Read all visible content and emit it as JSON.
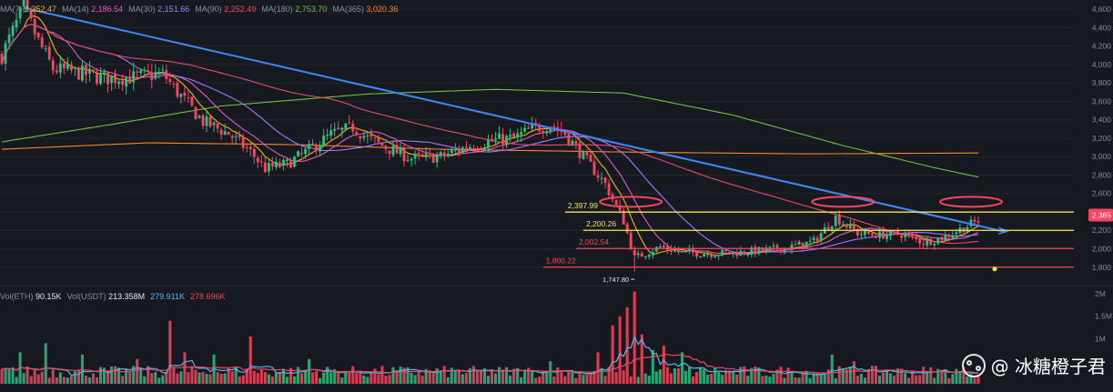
{
  "legend": {
    "price": [
      {
        "label": "MA(7)",
        "value": "2,352.47",
        "color": "#f0b90b"
      },
      {
        "label": "MA(14)",
        "value": "2,186.54",
        "color": "#e05cc0"
      },
      {
        "label": "MA(30)",
        "value": "2,151.66",
        "color": "#9e7bff"
      },
      {
        "label": "MA(90)",
        "value": "2,252.49",
        "color": "#e84a6a"
      },
      {
        "label": "MA(180)",
        "value": "2,753.70",
        "color": "#6cc04a"
      },
      {
        "label": "MA(365)",
        "value": "3,020.36",
        "color": "#f5892a"
      }
    ],
    "volume": [
      {
        "label": "Vol(ETH)",
        "value": "90.15K",
        "color": "#e8e8e8"
      },
      {
        "label": "Vol(USDT)",
        "value": "213.358M",
        "color": "#e8e8e8"
      },
      {
        "label": "",
        "value": "279.911K",
        "color": "#5ab8e8"
      },
      {
        "label": "",
        "value": "278.696K",
        "color": "#e84a6a"
      }
    ]
  },
  "watermark": "@ 冰糖橙子君",
  "colors": {
    "up": "#2ebd85",
    "down": "#f6465d",
    "trend": "#3d8af7",
    "level_yellow": "#f7e45a",
    "level_red": "#f6465d",
    "circle": "#f6465d",
    "grid": "#23272e",
    "axis_text": "#848e9c"
  },
  "chart_data": {
    "type": "candlestick",
    "y_axis": {
      "range": [
        1620,
        4700
      ],
      "ticks": [
        1800,
        2000,
        2200,
        2400,
        2600,
        2800,
        3000,
        3200,
        3400,
        3600,
        3800,
        4000,
        4200,
        4400,
        4600
      ],
      "tick_labels": [
        "1,800",
        "2,000",
        "2,200",
        "2,400",
        "2,600",
        "2,800",
        "3,000",
        "3,200",
        "3,400",
        "3,600",
        "3,800",
        "4,000",
        "4,200",
        "4,400",
        "4,600"
      ],
      "current_price_label": "2,365",
      "current_price": 2365
    },
    "volume_axis": {
      "range": [
        0,
        2100000
      ],
      "ticks": [
        1000000,
        1500000,
        2000000
      ],
      "tick_labels": [
        "1M",
        "1.5M",
        "2M"
      ]
    },
    "key_points": [
      [
        0,
        4100
      ],
      [
        6,
        4620
      ],
      [
        10,
        4250
      ],
      [
        14,
        3950
      ],
      [
        20,
        3920
      ],
      [
        28,
        3850
      ],
      [
        36,
        3860
      ],
      [
        44,
        3900
      ],
      [
        48,
        3700
      ],
      [
        55,
        3380
      ],
      [
        62,
        3250
      ],
      [
        68,
        3050
      ],
      [
        72,
        2870
      ],
      [
        78,
        2920
      ],
      [
        85,
        3100
      ],
      [
        90,
        3240
      ],
      [
        96,
        3320
      ],
      [
        100,
        3200
      ],
      [
        105,
        3100
      ],
      [
        112,
        2980
      ],
      [
        120,
        3000
      ],
      [
        128,
        3120
      ],
      [
        135,
        3180
      ],
      [
        140,
        3200
      ],
      [
        145,
        3300
      ],
      [
        150,
        3350
      ],
      [
        154,
        3250
      ],
      [
        160,
        2950
      ],
      [
        165,
        2700
      ],
      [
        170,
        2300
      ],
      [
        173,
        1900
      ],
      [
        180,
        2020
      ],
      [
        186,
        1960
      ],
      [
        194,
        1950
      ],
      [
        202,
        1960
      ],
      [
        210,
        1990
      ],
      [
        216,
        2020
      ],
      [
        222,
        2080
      ],
      [
        228,
        2340
      ],
      [
        234,
        2170
      ],
      [
        240,
        2150
      ],
      [
        246,
        2160
      ],
      [
        252,
        2070
      ],
      [
        258,
        2130
      ],
      [
        264,
        2250
      ],
      [
        268,
        2320
      ]
    ],
    "ma_series": [
      {
        "name": "MA(7)",
        "period": 7
      },
      {
        "name": "MA(14)",
        "period": 14
      },
      {
        "name": "MA(30)",
        "period": 30
      },
      {
        "name": "MA(90)",
        "period": 90
      }
    ],
    "ma180_points": [
      [
        0,
        3160
      ],
      [
        30,
        3350
      ],
      [
        60,
        3550
      ],
      [
        100,
        3680
      ],
      [
        135,
        3730
      ],
      [
        170,
        3690
      ],
      [
        200,
        3450
      ],
      [
        230,
        3120
      ],
      [
        255,
        2880
      ],
      [
        268,
        2770
      ]
    ],
    "ma365_points": [
      [
        0,
        3080
      ],
      [
        40,
        3150
      ],
      [
        80,
        3130
      ],
      [
        120,
        3080
      ],
      [
        170,
        3050
      ],
      [
        220,
        3030
      ],
      [
        268,
        3040
      ]
    ],
    "volume": {
      "base": 250000,
      "spikes": [
        [
          5,
          700000
        ],
        [
          12,
          900000
        ],
        [
          22,
          650000
        ],
        [
          37,
          550000
        ],
        [
          46,
          1400000
        ],
        [
          50,
          700000
        ],
        [
          58,
          650000
        ],
        [
          68,
          1050000
        ],
        [
          84,
          550000
        ],
        [
          150,
          500000
        ],
        [
          163,
          700000
        ],
        [
          167,
          1300000
        ],
        [
          169,
          1500000
        ],
        [
          171,
          1700000
        ],
        [
          173,
          2050000
        ],
        [
          175,
          1100000
        ],
        [
          178,
          750000
        ],
        [
          181,
          850000
        ],
        [
          186,
          700000
        ],
        [
          227,
          650000
        ],
        [
          233,
          500000
        ]
      ]
    },
    "trend_line": {
      "start": [
        6,
        4615
      ],
      "end": [
        267,
        2250
      ]
    },
    "horizontal_levels": [
      {
        "value": 2397.99,
        "label": "2,397.99",
        "color": "level_yellow",
        "start_index": 154
      },
      {
        "value": 2200.26,
        "label": "2,200.26",
        "color": "level_yellow",
        "start_index": 159
      },
      {
        "value": 2002.54,
        "label": "2,002.54",
        "color": "level_red",
        "start_index": 157
      },
      {
        "value": 1800.22,
        "label": "1,800.22",
        "color": "level_red",
        "start_index": 148
      }
    ],
    "low_marker": {
      "index": 173,
      "value": 1747.8,
      "label": "1,747.80"
    },
    "circles": [
      {
        "center_index": 172,
        "value": 2510
      },
      {
        "center_index": 230,
        "value": 2510
      },
      {
        "center_index": 265,
        "value": 2510
      }
    ],
    "candle_count": 268
  }
}
